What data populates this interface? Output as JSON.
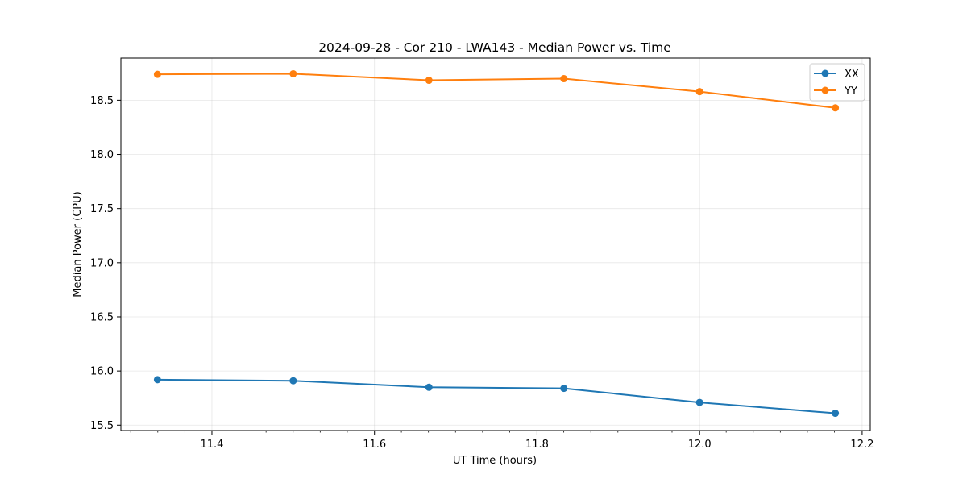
{
  "chart_data": {
    "type": "line",
    "title": "2024-09-28 - Cor 210 - LWA143 - Median Power vs. Time",
    "xlabel": "UT Time (hours)",
    "ylabel": "Median Power (CPU)",
    "xlim": [
      11.288,
      12.21
    ],
    "ylim": [
      15.45,
      18.89
    ],
    "x_ticks": [
      11.4,
      11.6,
      11.8,
      12.0,
      12.2
    ],
    "x_tick_labels": [
      "11.4",
      "11.6",
      "11.8",
      "12.0",
      "12.2"
    ],
    "x_minor_step": 0.0333,
    "y_ticks": [
      15.5,
      16.0,
      16.5,
      17.0,
      17.5,
      18.0,
      18.5
    ],
    "y_tick_labels": [
      "15.5",
      "16.0",
      "16.5",
      "17.0",
      "17.5",
      "18.0",
      "18.5"
    ],
    "grid": true,
    "legend_position": "top-right",
    "x": [
      11.333,
      11.5,
      11.667,
      11.833,
      12.0,
      12.167
    ],
    "series": [
      {
        "name": "XX",
        "color": "#1f77b4",
        "values": [
          15.92,
          15.91,
          15.85,
          15.84,
          15.71,
          15.61
        ]
      },
      {
        "name": "YY",
        "color": "#ff7f0e",
        "values": [
          18.74,
          18.745,
          18.685,
          18.7,
          18.58,
          18.43
        ]
      }
    ]
  }
}
